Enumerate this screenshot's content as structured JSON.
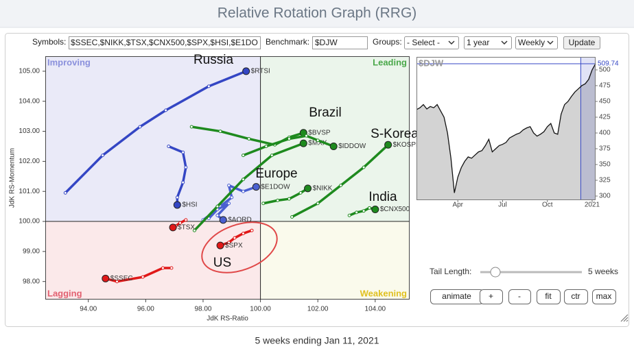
{
  "header": {
    "title": "Relative Rotation Graph (RRG)"
  },
  "controls": {
    "symbols_label": "Symbols:",
    "symbols_value": "$SSEC,$NIKK,$TSX,$CNX500,$SPX,$HSI,$E1DO",
    "benchmark_label": "Benchmark:",
    "benchmark_value": "$DJW",
    "groups_label": "Groups:",
    "groups_value": "- Select -",
    "period_value": "1 year",
    "frequency_value": "Weekly",
    "update_button": "Update",
    "tail_label": "Tail Length:",
    "tail_value": "5 weeks",
    "buttons": [
      "animate",
      "+",
      "-",
      "fit",
      "ctr",
      "max"
    ]
  },
  "footer": {
    "text": "5 weeks ending Jan 11, 2021"
  },
  "chart_data": [
    {
      "type": "scatter",
      "xlabel": "JdK RS-Ratio",
      "ylabel": "JdK RS-Momentum",
      "xlim": [
        92.5,
        105.2
      ],
      "ylim": [
        97.4,
        105.5
      ],
      "center": 100,
      "xticks": [
        {
          "value": 94,
          "label": "94.00"
        },
        {
          "value": 96,
          "label": "96.00"
        },
        {
          "value": 98,
          "label": "98.00"
        },
        {
          "value": 100,
          "label": "100.00"
        },
        {
          "value": 102,
          "label": "102.00"
        },
        {
          "value": 104,
          "label": "104.00"
        }
      ],
      "yticks": [
        {
          "value": 98,
          "label": "98.00"
        },
        {
          "value": 99,
          "label": "99.00"
        },
        {
          "value": 100,
          "label": "100.00"
        },
        {
          "value": 101,
          "label": "101.00"
        },
        {
          "value": 102,
          "label": "102.00"
        },
        {
          "value": 103,
          "label": "103.00"
        },
        {
          "value": 104,
          "label": "104.00"
        },
        {
          "value": 105,
          "label": "105.00"
        }
      ],
      "quadrants": [
        {
          "label": "Improving",
          "color": "#eaeaf8",
          "text_color": "#8a90dc"
        },
        {
          "label": "Leading",
          "color": "#ebf5eb",
          "text_color": "#4aa84a"
        },
        {
          "label": "Lagging",
          "color": "#fbe9ea",
          "text_color": "#e26070"
        },
        {
          "label": "Weakening",
          "color": "#fafaec",
          "text_color": "#e0c020"
        }
      ],
      "annotations": [
        "Russia",
        "Brazil",
        "S-Korea",
        "Europe",
        "India",
        "US"
      ],
      "series": [
        {
          "name": "$RTSI",
          "color": "#3446c4",
          "x": [
            93.2,
            94.5,
            95.8,
            96.7,
            98.2,
            99.5
          ],
          "values": [
            100.95,
            102.2,
            103.15,
            103.7,
            104.5,
            105.0
          ]
        },
        {
          "name": "$HSI",
          "color": "#3446c4",
          "x": [
            96.8,
            97.3,
            97.4,
            97.3,
            97.1,
            97.1
          ],
          "values": [
            102.5,
            102.3,
            101.8,
            101.3,
            100.8,
            100.55
          ]
        },
        {
          "name": "$E1DOW",
          "color": "#4a5fd0",
          "x": [
            98.2,
            98.6,
            99.0,
            98.9,
            99.4,
            99.85
          ],
          "values": [
            100.1,
            100.5,
            100.8,
            101.2,
            101.0,
            101.15
          ]
        },
        {
          "name": "$AORD",
          "color": "#4a5fd0",
          "x": [
            98.0,
            98.5,
            98.9,
            98.5,
            98.7
          ],
          "values": [
            100.05,
            100.4,
            100.6,
            100.2,
            100.05
          ]
        },
        {
          "name": "$BVSP",
          "color": "#1e8a1e",
          "x": [
            97.6,
            98.6,
            99.6,
            100.5,
            101.0,
            101.5
          ],
          "values": [
            103.15,
            103.0,
            102.75,
            102.55,
            102.8,
            102.95
          ]
        },
        {
          "name": "$MXX",
          "color": "#1e8a1e",
          "x": [
            97.7,
            98.5,
            99.4,
            100.4,
            101.5
          ],
          "values": [
            99.7,
            100.5,
            101.4,
            102.2,
            102.6
          ]
        },
        {
          "name": "$IDDOW",
          "color": "#1e8a1e",
          "x": [
            99.4,
            100.2,
            101.0,
            101.6,
            102.0,
            102.55
          ],
          "values": [
            102.2,
            102.5,
            102.75,
            102.85,
            102.7,
            102.5
          ]
        },
        {
          "name": "$KOSPI",
          "color": "#1e8a1e",
          "x": [
            101.1,
            102.0,
            102.8,
            103.6,
            104.45
          ],
          "values": [
            100.15,
            100.6,
            101.2,
            101.8,
            102.55
          ]
        },
        {
          "name": "$NIKK",
          "color": "#1e8a1e",
          "x": [
            100.1,
            100.6,
            101.0,
            101.4,
            101.65
          ],
          "values": [
            100.6,
            100.7,
            100.75,
            100.95,
            101.1
          ]
        },
        {
          "name": "$CNX500",
          "color": "#1e8a1e",
          "x": [
            103.1,
            103.35,
            103.6,
            103.8,
            104.0
          ],
          "values": [
            100.2,
            100.3,
            100.35,
            100.45,
            100.4
          ]
        },
        {
          "name": "$TSX",
          "color": "#e01818",
          "x": [
            97.4,
            97.2,
            97.05,
            96.95
          ],
          "values": [
            100.05,
            99.95,
            99.85,
            99.8
          ]
        },
        {
          "name": "$SPX",
          "color": "#e01818",
          "x": [
            99.7,
            99.4,
            99.1,
            98.9,
            98.6
          ],
          "values": [
            99.7,
            99.6,
            99.45,
            99.3,
            99.2
          ]
        },
        {
          "name": "$SSEC",
          "color": "#e01818",
          "x": [
            96.9,
            96.6,
            95.9,
            95.0,
            94.6
          ],
          "values": [
            98.45,
            98.45,
            98.15,
            98.0,
            98.1
          ]
        }
      ]
    },
    {
      "type": "area",
      "title": "$DJW",
      "color": "#d3d3d3",
      "highlight_color": "#3446c4",
      "xlim": [
        0,
        52
      ],
      "ylim": [
        293.5,
        520.6
      ],
      "xticks": [
        {
          "value": 12,
          "label": "Apr"
        },
        {
          "value": 25,
          "label": "Jul"
        },
        {
          "value": 38,
          "label": "Oct"
        },
        {
          "value": 51,
          "label": "2021"
        }
      ],
      "yticks": [
        300,
        325,
        350,
        375,
        400,
        425,
        450,
        475,
        500
      ],
      "values": [
        437,
        440,
        445,
        438,
        442,
        440,
        445,
        435,
        425,
        400,
        360,
        305,
        330,
        345,
        355,
        362,
        360,
        365,
        370,
        372,
        380,
        390,
        370,
        375,
        380,
        382,
        385,
        392,
        395,
        398,
        400,
        405,
        408,
        410,
        400,
        395,
        398,
        402,
        410,
        415,
        400,
        398,
        430,
        445,
        450,
        458,
        465,
        470,
        475,
        478,
        485,
        500,
        509.74
      ]
    }
  ]
}
